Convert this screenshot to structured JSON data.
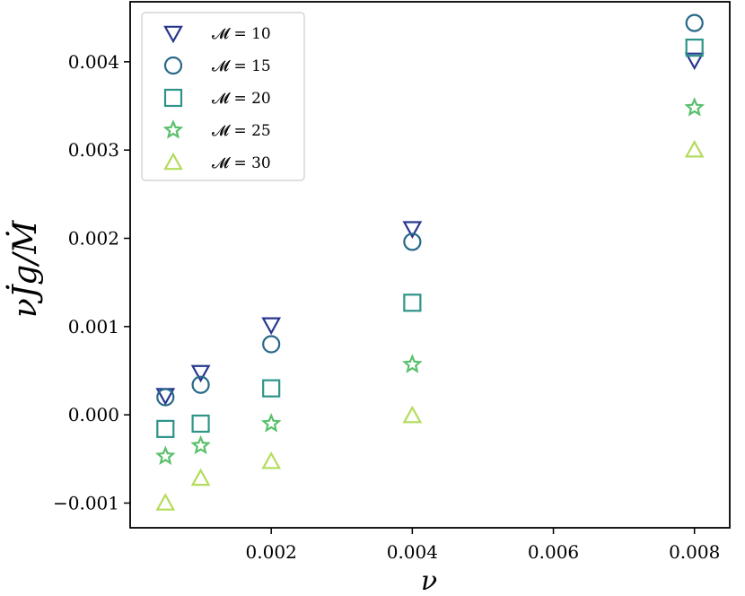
{
  "chart_data": {
    "type": "scatter",
    "title": "",
    "xlabel": "ν",
    "ylabel": "νJ̇g/Ṁ",
    "xlim": [
      0.0,
      0.0085
    ],
    "ylim": [
      -0.00128,
      0.00468
    ],
    "xticks": [
      0.002,
      0.004,
      0.006,
      0.008
    ],
    "xtick_labels": [
      "0.002",
      "0.004",
      "0.006",
      "0.008"
    ],
    "yticks": [
      -0.001,
      0.0,
      0.001,
      0.002,
      0.003,
      0.004
    ],
    "ytick_labels": [
      "−0.001",
      "0.000",
      "0.001",
      "0.002",
      "0.003",
      "0.004"
    ],
    "grid": false,
    "legend_position": "top-left",
    "x": [
      0.0005,
      0.001,
      0.002,
      0.004,
      0.008
    ],
    "series": [
      {
        "name": "𝓜 = 10",
        "marker": "triangle-down",
        "color": "#27378f",
        "values": [
          0.00022,
          0.00048,
          0.00102,
          0.00211,
          0.00402
        ]
      },
      {
        "name": "𝓜 = 15",
        "marker": "circle",
        "color": "#27698a",
        "values": [
          0.0002,
          0.00034,
          0.0008,
          0.00196,
          0.00444
        ]
      },
      {
        "name": "𝓜 = 20",
        "marker": "square",
        "color": "#2e9488",
        "values": [
          -0.00016,
          -0.0001,
          0.0003,
          0.00127,
          0.00416
        ]
      },
      {
        "name": "𝓜 = 25",
        "marker": "star",
        "color": "#59c06b",
        "values": [
          -0.00047,
          -0.00035,
          -0.0001,
          0.00057,
          0.00348
        ]
      },
      {
        "name": "𝓜 = 30",
        "marker": "triangle-up",
        "color": "#b4dc5b",
        "values": [
          -0.001,
          -0.00072,
          -0.00053,
          -1e-05,
          0.003
        ]
      }
    ]
  }
}
